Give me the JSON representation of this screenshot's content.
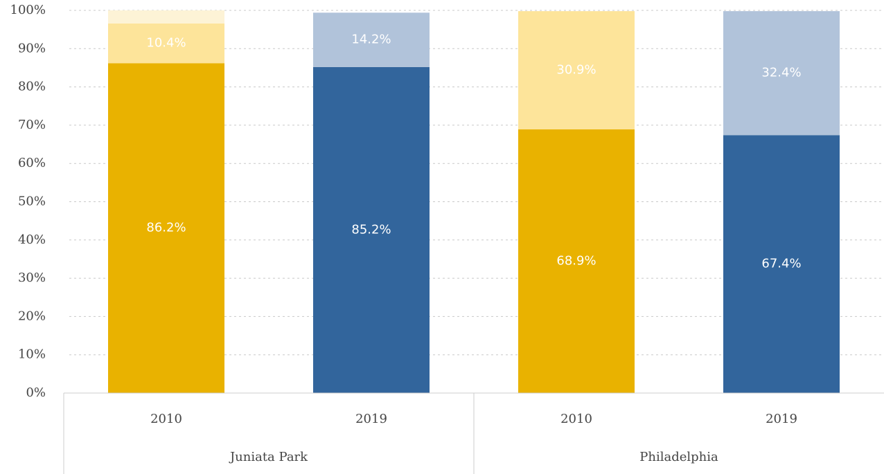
{
  "chart_data": {
    "type": "stacked-bar",
    "groups": [
      {
        "name": "Juniata Park",
        "categories": [
          "2010",
          "2019"
        ]
      },
      {
        "name": "Philadelphia",
        "categories": [
          "2010",
          "2019"
        ]
      }
    ],
    "series": [
      {
        "colors": [
          "#e9b200",
          "#32659c",
          "#e9b200",
          "#32659c"
        ],
        "values": [
          86.2,
          85.2,
          68.9,
          67.4
        ],
        "value_labels": [
          "86.2%",
          "85.2%",
          "68.9%",
          "67.4%"
        ]
      },
      {
        "colors": [
          "#fde49a",
          "#b1c3da",
          "#fde49a",
          "#b1c3da"
        ],
        "values": [
          10.4,
          14.2,
          30.9,
          32.4
        ],
        "value_labels": [
          "10.4%",
          "14.2%",
          "30.9%",
          "32.4%"
        ]
      },
      {
        "colors": [
          "#fdf3d6",
          "#dfe7f0",
          "#fdf3d6",
          "#dfe7f0"
        ],
        "values": [
          3.4,
          null,
          null,
          null
        ]
      }
    ],
    "ylim": [
      0,
      100
    ],
    "yticks": [
      {
        "value": 0,
        "label": "0%"
      },
      {
        "value": 10,
        "label": "10%"
      },
      {
        "value": 20,
        "label": "20%"
      },
      {
        "value": 30,
        "label": "30%"
      },
      {
        "value": 40,
        "label": "40%"
      },
      {
        "value": 50,
        "label": "50%"
      },
      {
        "value": 60,
        "label": "60%"
      },
      {
        "value": 70,
        "label": "70%"
      },
      {
        "value": 80,
        "label": "80%"
      },
      {
        "value": 90,
        "label": "90%"
      },
      {
        "value": 100,
        "label": "100%"
      }
    ],
    "grid": true
  }
}
